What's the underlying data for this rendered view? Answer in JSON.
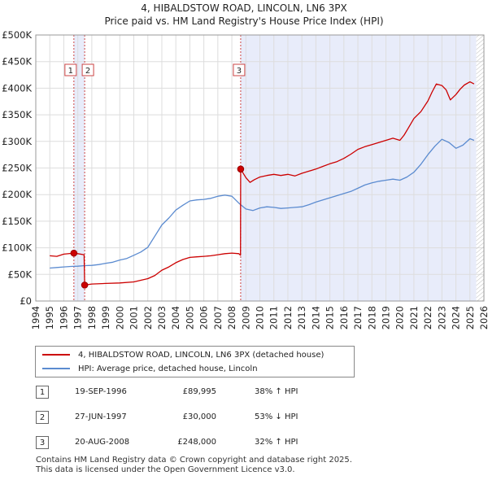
{
  "title": "4, HIBALDSTOW ROAD, LINCOLN, LN6 3PX",
  "subtitle": "Price paid vs. HM Land Registry's House Price Index (HPI)",
  "chart_data": {
    "type": "line",
    "title": "4, HIBALDSTOW ROAD, LINCOLN, LN6 3PX",
    "subtitle": "Price paid vs. HM Land Registry's House Price Index (HPI)",
    "x_range": [
      1994,
      2026
    ],
    "y_range": [
      0,
      500000
    ],
    "x_ticks": [
      "1994",
      "1995",
      "1996",
      "1997",
      "1998",
      "1999",
      "2000",
      "2001",
      "2002",
      "2003",
      "2004",
      "2005",
      "2006",
      "2007",
      "2008",
      "2009",
      "2010",
      "2011",
      "2012",
      "2013",
      "2014",
      "2015",
      "2016",
      "2017",
      "2018",
      "2019",
      "2020",
      "2021",
      "2022",
      "2023",
      "2024",
      "2025",
      "2026"
    ],
    "y_ticks": [
      {
        "value": 0,
        "label": "£0"
      },
      {
        "value": 50000,
        "label": "£50K"
      },
      {
        "value": 100000,
        "label": "£100K"
      },
      {
        "value": 150000,
        "label": "£150K"
      },
      {
        "value": 200000,
        "label": "£200K"
      },
      {
        "value": 250000,
        "label": "£250K"
      },
      {
        "value": 300000,
        "label": "£300K"
      },
      {
        "value": 350000,
        "label": "£350K"
      },
      {
        "value": 400000,
        "label": "£400K"
      },
      {
        "value": 450000,
        "label": "£450K"
      },
      {
        "value": 500000,
        "label": "£500K"
      }
    ],
    "shaded_ranges": [
      [
        1996.72,
        1997.49
      ],
      [
        2008.63,
        2025.45
      ]
    ],
    "series": [
      {
        "name": "4, HIBALDSTOW ROAD, LINCOLN, LN6 3PX (detached house)",
        "color": "#cc0000",
        "x": [
          1995,
          1995.5,
          1996,
          1996.72,
          1997.0,
          1997.45,
          1997.49,
          1998,
          1999,
          2000,
          2001,
          2001.5,
          2002,
          2002.5,
          2003,
          2003.5,
          2004,
          2004.5,
          2005,
          2005.5,
          2006,
          2006.5,
          2007,
          2007.5,
          2008,
          2008.5,
          2008.62,
          2008.63,
          2009,
          2009.3,
          2009.6,
          2010,
          2010.5,
          2011,
          2011.5,
          2012,
          2012.5,
          2013,
          2013.5,
          2014,
          2014.5,
          2015,
          2015.5,
          2016,
          2016.5,
          2017,
          2017.5,
          2018,
          2018.5,
          2019,
          2019.5,
          2020,
          2020.3,
          2020.6,
          2021,
          2021.5,
          2022,
          2022.3,
          2022.6,
          2023,
          2023.3,
          2023.6,
          2024,
          2024.3,
          2024.6,
          2025,
          2025.3
        ],
        "values": [
          85000,
          84000,
          88000,
          89995,
          89000,
          87000,
          30000,
          32000,
          33000,
          34000,
          36000,
          39000,
          42000,
          48000,
          58000,
          64000,
          72000,
          78000,
          82000,
          83000,
          84000,
          85000,
          87000,
          89000,
          90000,
          89000,
          86000,
          248000,
          232000,
          223000,
          228000,
          233000,
          236000,
          238000,
          236000,
          238000,
          235000,
          240000,
          244000,
          248000,
          253000,
          258000,
          262000,
          268000,
          276000,
          285000,
          290000,
          294000,
          298000,
          302000,
          306000,
          302000,
          312000,
          325000,
          343000,
          356000,
          376000,
          393000,
          408000,
          405000,
          397000,
          378000,
          388000,
          398000,
          406000,
          412000,
          408000
        ]
      },
      {
        "name": "HPI: Average price, detached house, Lincoln",
        "color": "#5b8bd0",
        "x": [
          1995,
          1995.5,
          1996,
          1996.5,
          1997,
          1997.5,
          1998,
          1998.5,
          1999,
          1999.5,
          2000,
          2000.5,
          2001,
          2001.5,
          2002,
          2002.5,
          2003,
          2003.5,
          2004,
          2004.5,
          2005,
          2005.5,
          2006,
          2006.5,
          2007,
          2007.5,
          2008,
          2008.5,
          2009,
          2009.5,
          2010,
          2010.5,
          2011,
          2011.5,
          2012,
          2012.5,
          2013,
          2013.5,
          2014,
          2014.5,
          2015,
          2015.5,
          2016,
          2016.5,
          2017,
          2017.5,
          2018,
          2018.5,
          2019,
          2019.5,
          2020,
          2020.5,
          2021,
          2021.5,
          2022,
          2022.5,
          2023,
          2023.5,
          2024,
          2024.5,
          2025,
          2025.3
        ],
        "values": [
          62000,
          63000,
          64000,
          65000,
          65500,
          66500,
          67000,
          68500,
          71000,
          73000,
          77000,
          80000,
          86000,
          92000,
          101000,
          122000,
          143000,
          156000,
          171000,
          180000,
          188000,
          190000,
          191000,
          193000,
          197000,
          199000,
          197000,
          184000,
          173000,
          170000,
          175000,
          177000,
          176000,
          174000,
          175000,
          176000,
          177000,
          181000,
          186000,
          190000,
          194000,
          198000,
          202000,
          206000,
          212000,
          218000,
          222000,
          225000,
          227000,
          229000,
          227000,
          233000,
          242000,
          257000,
          275000,
          291000,
          304000,
          298000,
          287000,
          293000,
          305000,
          302000
        ]
      }
    ],
    "sales": [
      {
        "label": "1",
        "x": 1996.72,
        "price": 89995
      },
      {
        "label": "2",
        "x": 1997.49,
        "price": 30000
      },
      {
        "label": "3",
        "x": 2008.63,
        "price": 248000
      }
    ]
  },
  "legend": {
    "property_label": "4, HIBALDSTOW ROAD, LINCOLN, LN6 3PX (detached house)",
    "hpi_label": "HPI: Average price, detached house, Lincoln"
  },
  "transactions": [
    {
      "num": "1",
      "date": "19-SEP-1996",
      "price": "£89,995",
      "hpi": "38% ↑ HPI"
    },
    {
      "num": "2",
      "date": "27-JUN-1997",
      "price": "£30,000",
      "hpi": "53% ↓ HPI"
    },
    {
      "num": "3",
      "date": "20-AUG-2008",
      "price": "£248,000",
      "hpi": "32% ↑ HPI"
    }
  ],
  "footer": {
    "line1": "Contains HM Land Registry data © Crown copyright and database right 2025.",
    "line2": "This data is licensed under the Open Government Licence v3.0."
  }
}
